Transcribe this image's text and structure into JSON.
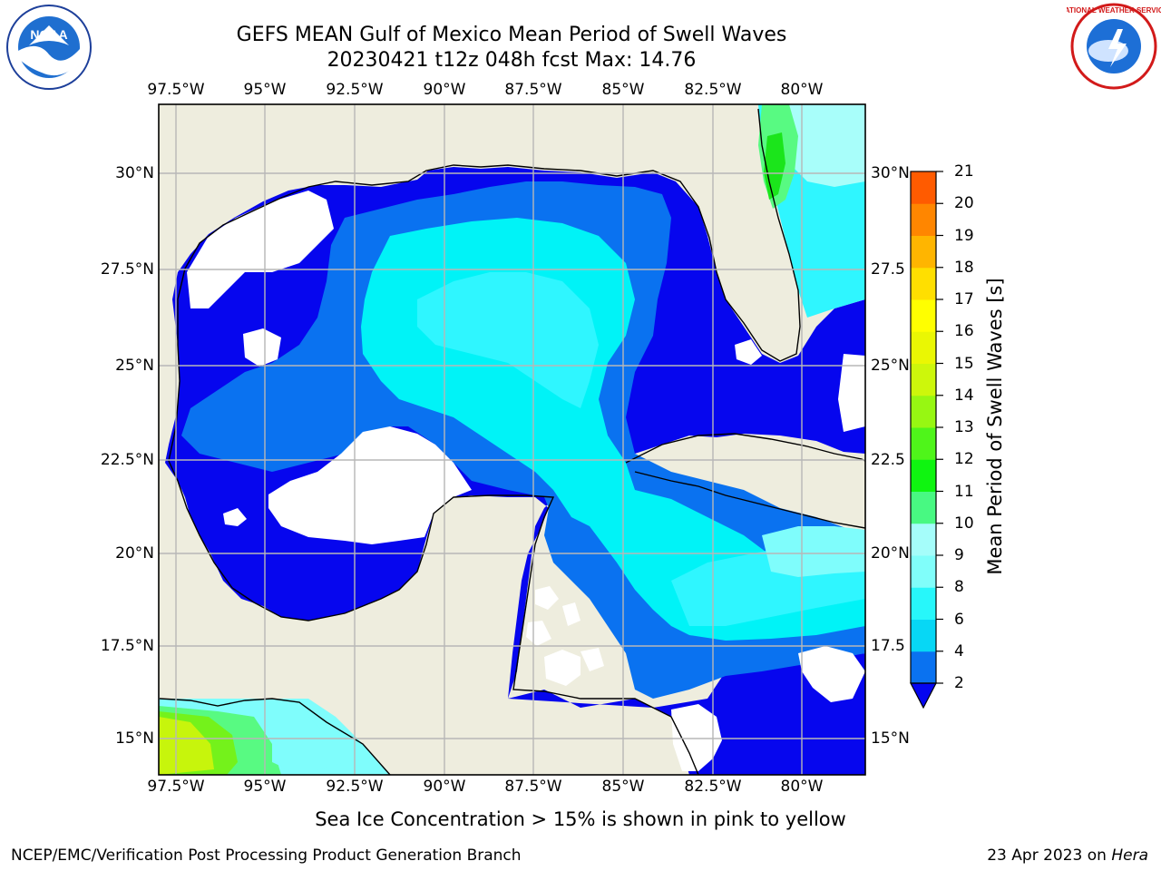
{
  "title": {
    "line1": "GEFS MEAN Gulf of Mexico Mean Period of Swell Waves",
    "line2": "20230421 t12z 048h fcst   Max: 14.76"
  },
  "axes": {
    "lon_ticks": [
      "97.5°W",
      "95°W",
      "92.5°W",
      "90°W",
      "87.5°W",
      "85°W",
      "82.5°W",
      "80°W"
    ],
    "lat_ticks_left": [
      "30°N",
      "27.5°N",
      "25°N",
      "22.5°N",
      "20°N",
      "17.5°N",
      "15°N"
    ],
    "lat_ticks_right": [
      "30°N",
      "27.5",
      "25°N",
      "22.5",
      "20°N",
      "17.5",
      "15°N"
    ]
  },
  "colorbar": {
    "label": "Mean Period of Swell Waves [s]",
    "ticks": [
      "2",
      "4",
      "6",
      "8",
      "9",
      "10",
      "11",
      "12",
      "13",
      "14",
      "15",
      "16",
      "17",
      "18",
      "19",
      "20",
      "21"
    ],
    "colors": [
      "#0a72f0",
      "#07d7f5",
      "#27f7fa",
      "#80fefa",
      "#a5fdfa",
      "#48f982",
      "#0ff510",
      "#4ff51a",
      "#97f712",
      "#cdf70b",
      "#eaf703",
      "#ffff00",
      "#ffdf00",
      "#ffb500",
      "#ff8600",
      "#ff5b00",
      "#ff3100",
      "#ff0000"
    ],
    "extend_color": "#0505f0"
  },
  "map_colors": {
    "land": "#eeedde",
    "level0": "#0606ee",
    "level2": "#0a72f0",
    "level4": "#00f3f7",
    "level6": "#2ff6ff",
    "level8": "#7ffdfc",
    "level9": "#a8fefa",
    "level10": "#58fa82",
    "level11": "#1be51b",
    "level12": "#74f21b",
    "level13": "#c7f50c",
    "grid": "#b7b7b7"
  },
  "ice_note": "Sea Ice Concentration > 15% is shown in pink to yellow",
  "footer": {
    "left": "NCEP/EMC/Verification Post Processing Product Generation Branch",
    "right_prefix": "23 Apr 2023 on ",
    "right_machine": "Hera"
  },
  "logos": {
    "noaa_text": "NOAA",
    "nws_text": "NATIONAL WEATHER SERVICE"
  }
}
